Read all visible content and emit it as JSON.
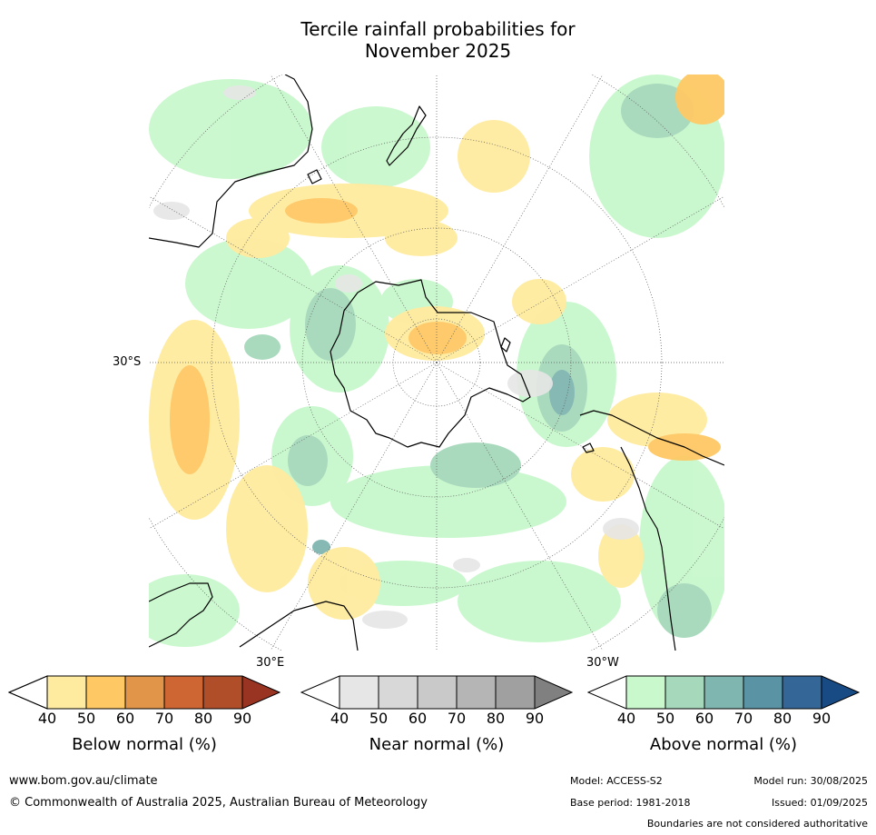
{
  "title_line1": "Tercile rainfall probabilities for",
  "title_line2": "November 2025",
  "map": {
    "projection": "south-polar-stereographic",
    "lat_label": "30°S",
    "lon_label_e": "30°E",
    "lon_label_w": "30°W",
    "landmasses_outlined": [
      "Antarctica",
      "Australia",
      "New Zealand",
      "South America",
      "Africa"
    ],
    "colors": {
      "ocean_background": "#ffffff",
      "coast": "#000000",
      "graticule": "#555555"
    }
  },
  "colorbars": [
    {
      "label": "Below normal (%)",
      "ticks": [
        "40",
        "50",
        "60",
        "70",
        "80",
        "90"
      ],
      "colors": [
        "#ffffff",
        "#ffeb9f",
        "#fec864",
        "#e09549",
        "#cd6633",
        "#b04e2a",
        "#993322"
      ]
    },
    {
      "label": "Near normal (%)",
      "ticks": [
        "40",
        "50",
        "60",
        "70",
        "80",
        "90"
      ],
      "colors": [
        "#ffffff",
        "#e6e6e6",
        "#d8d8d8",
        "#c9c9c9",
        "#b5b5b5",
        "#a0a0a0",
        "#808080"
      ]
    },
    {
      "label": "Above normal (%)",
      "ticks": [
        "40",
        "50",
        "60",
        "70",
        "80",
        "90"
      ],
      "colors": [
        "#ffffff",
        "#c8f8cc",
        "#a6d9bb",
        "#80b6b0",
        "#5a93a4",
        "#346697",
        "#184a84"
      ]
    }
  ],
  "footer": {
    "website": "www.bom.gov.au/climate",
    "copyright": "© Commonwealth of Australia 2025, Australian Bureau of Meteorology",
    "model": "Model: ACCESS-S2",
    "model_run": "Model run: 30/08/2025",
    "base_period": "Base period: 1981-2018",
    "issued": "Issued: 01/09/2025",
    "disclaimer": "Boundaries are not considered authoritative"
  }
}
